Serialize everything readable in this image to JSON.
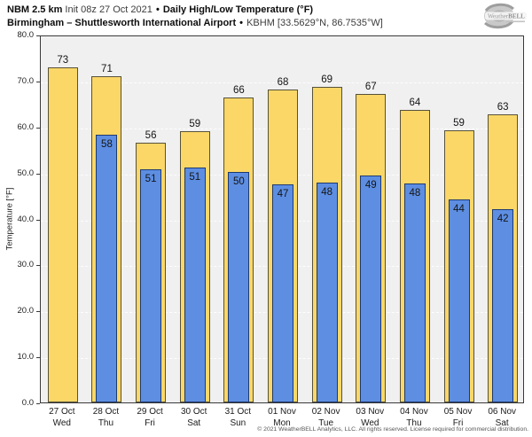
{
  "header": {
    "model": "NBM 2.5 km",
    "init": "Init 08z 27 Oct 2021",
    "sep1": "•",
    "product": "Daily High/Low Temperature (°F)",
    "station": "Birmingham – Shuttlesworth International Airport",
    "sep2": "•",
    "station_meta": "KBHM [33.5629°N, 86.7535°W]",
    "logo": {
      "icon": "hurricane-swirl-icon",
      "text_regular": "Weather",
      "text_bold": "BELL"
    }
  },
  "chart_data": {
    "type": "bar",
    "title": "NBM 2.5 km Init 08z 27 Oct 2021 • Daily High/Low Temperature (°F)",
    "subtitle": "Birmingham – Shuttlesworth International Airport • KBHM [33.5629°N, 86.7535°W]",
    "ylabel": "Temperature [°F]",
    "ylim": [
      0,
      80
    ],
    "y_ticks": [
      0,
      10,
      20,
      30,
      40,
      50,
      60,
      70,
      80
    ],
    "y_tick_labels": [
      "0.0",
      "10.0",
      "20.0",
      "30.0",
      "40.0",
      "50.0",
      "60.0",
      "70.0",
      "80.0"
    ],
    "grid": "horizontal-dashed",
    "legend": "none",
    "categories": [
      {
        "date": "27 Oct",
        "day": "Wed"
      },
      {
        "date": "28 Oct",
        "day": "Thu"
      },
      {
        "date": "29 Oct",
        "day": "Fri"
      },
      {
        "date": "30 Oct",
        "day": "Sat"
      },
      {
        "date": "31 Oct",
        "day": "Sun"
      },
      {
        "date": "01 Nov",
        "day": "Mon"
      },
      {
        "date": "02 Nov",
        "day": "Tue"
      },
      {
        "date": "03 Nov",
        "day": "Wed"
      },
      {
        "date": "04 Nov",
        "day": "Thu"
      },
      {
        "date": "05 Nov",
        "day": "Fri"
      },
      {
        "date": "06 Nov",
        "day": "Sat"
      }
    ],
    "series": [
      {
        "name": "Daily High",
        "color": "#fbd768",
        "values": [
          72.9,
          71.0,
          56.4,
          59.0,
          66.3,
          68.1,
          68.6,
          67.0,
          63.7,
          59.1,
          62.7
        ],
        "labels": [
          "73",
          "71",
          "56",
          "59",
          "66",
          "68",
          "69",
          "67",
          "64",
          "59",
          "63"
        ]
      },
      {
        "name": "Daily Low",
        "color": "#5d8ee2",
        "values": [
          null,
          58.3,
          50.7,
          51.1,
          50.2,
          47.5,
          47.9,
          49.3,
          47.7,
          44.1,
          42.1
        ],
        "labels": [
          null,
          "58",
          "51",
          "51",
          "50",
          "47",
          "48",
          "49",
          "48",
          "44",
          "42"
        ]
      }
    ]
  },
  "colors": {
    "high_fill": "#fbd768",
    "high_border": "#56523a",
    "low_fill": "#5d8ee2",
    "low_border": "#1e3a6e",
    "plot_bg": "#f0f0f0",
    "plot_border": "#3a3a3a",
    "grid_line": "#fdfdfd"
  },
  "footer": {
    "copyright": "© 2021 WeatherBELL Analytics, LLC. All rights reserved. License required for commercial distribution."
  }
}
